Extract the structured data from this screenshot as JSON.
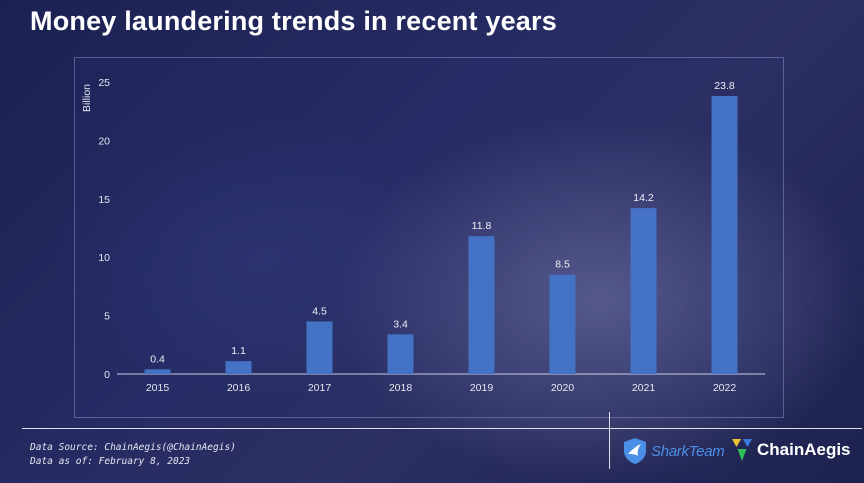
{
  "title": "Money laundering trends in recent years",
  "chart_data": {
    "type": "bar",
    "categories": [
      "2015",
      "2016",
      "2017",
      "2018",
      "2019",
      "2020",
      "2021",
      "2022"
    ],
    "values": [
      0.4,
      1.1,
      4.5,
      3.4,
      11.8,
      8.5,
      14.2,
      23.8
    ],
    "data_labels": [
      "0.4",
      "1.1",
      "4.5",
      "3.4",
      "11.8",
      "8.5",
      "14.2",
      "23.8"
    ],
    "ylabel": "Billion",
    "xlabel": "",
    "ylim": [
      0,
      25
    ],
    "yticks": [
      0,
      5,
      10,
      15,
      20,
      25
    ],
    "grid": false,
    "legend": "none",
    "bar_color": "#4472c4"
  },
  "footer": {
    "source_line": "Data Source: ChainAegis(@ChainAegis)",
    "date_line": "Data as of: February 8, 2023"
  },
  "logos": {
    "sharkteam": "SharkTeam",
    "chainaegis": "ChainAegis"
  },
  "colors": {
    "background": "#232a5e",
    "shark_blue": "#4a8fe6",
    "aegis_yellow": "#f2c230",
    "aegis_green": "#2dbd5a",
    "aegis_blue": "#3b7be0"
  }
}
